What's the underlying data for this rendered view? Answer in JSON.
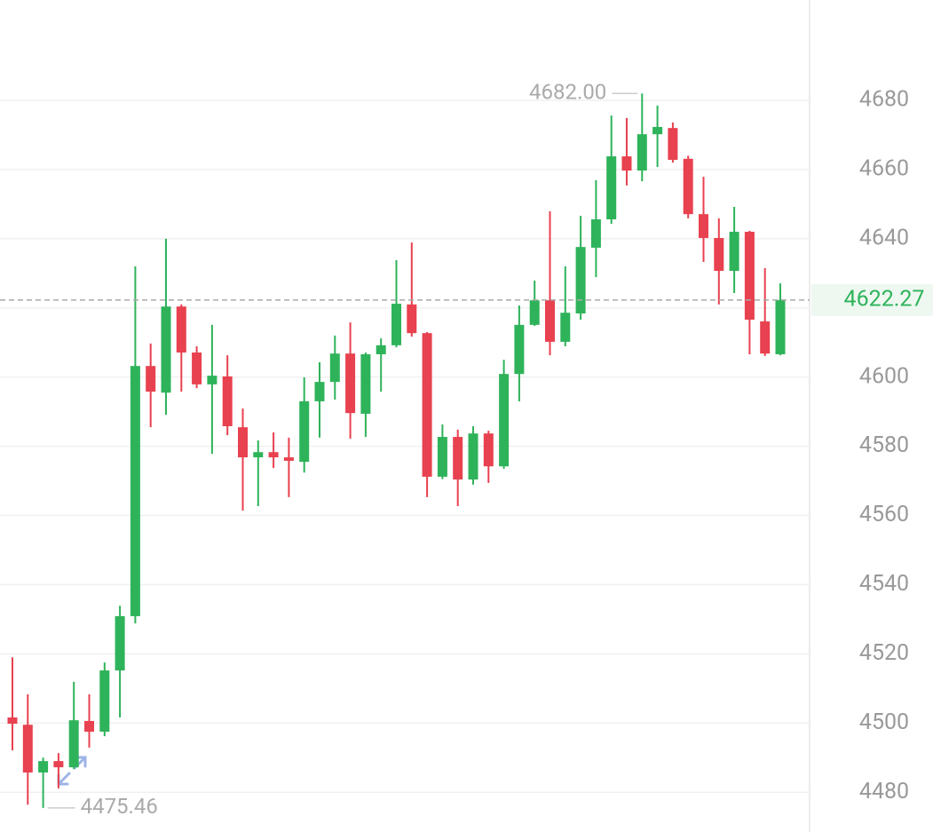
{
  "chart_data": {
    "type": "candlestick",
    "up_color": "#2eb35a",
    "down_color": "#e8414f",
    "open": [
      4501.6,
      4499.5,
      4485.7,
      4489.0,
      4487.2,
      4500.6,
      4497.5,
      4515.2,
      4530.9,
      4603.2,
      4595.5,
      4620.4,
      4607.1,
      4597.9,
      4600.2,
      4585.5,
      4576.8,
      4578.3,
      4576.8,
      4575.5,
      4593.0,
      4598.6,
      4606.8,
      4589.4,
      4606.6,
      4609.2,
      4621.0,
      4612.7,
      4571.2,
      4582.7,
      4570.4,
      4583.7,
      4574.2,
      4600.9,
      4615.1,
      4622.2,
      4610.2,
      4618.4,
      4637.4,
      4645.6,
      4663.8,
      4659.7,
      4670.2,
      4672.0,
      4663.1,
      4647.1,
      4640.2,
      4630.7,
      4642.0,
      4616.1,
      4606.6
    ],
    "high": [
      4519.0,
      4508.3,
      4490.0,
      4491.3,
      4511.9,
      4508.3,
      4517.5,
      4533.9,
      4632.0,
      4609.7,
      4640.0,
      4621.0,
      4608.9,
      4615.1,
      4606.3,
      4590.9,
      4581.7,
      4584.0,
      4582.5,
      4599.9,
      4604.3,
      4612.0,
      4615.8,
      4607.1,
      4611.2,
      4633.8,
      4638.9,
      4613.0,
      4586.3,
      4584.8,
      4585.8,
      4584.5,
      4605.0,
      4620.7,
      4627.9,
      4647.9,
      4632.0,
      4646.6,
      4656.9,
      4675.6,
      4674.9,
      4682.0,
      4678.5,
      4673.6,
      4664.0,
      4657.9,
      4645.9,
      4649.2,
      4642.3,
      4631.5,
      4627.1
    ],
    "low": [
      4492.1,
      4476.4,
      4475.46,
      4481.1,
      4486.7,
      4492.9,
      4496.2,
      4501.6,
      4528.8,
      4585.5,
      4589.1,
      4595.8,
      4596.8,
      4577.8,
      4583.2,
      4561.4,
      4562.7,
      4573.7,
      4565.3,
      4572.4,
      4582.5,
      4593.5,
      4582.2,
      4582.7,
      4595.8,
      4608.6,
      4611.7,
      4565.3,
      4570.5,
      4562.7,
      4568.9,
      4569.4,
      4573.5,
      4593.0,
      4614.8,
      4606.3,
      4608.9,
      4616.6,
      4628.9,
      4644.3,
      4655.4,
      4656.6,
      4660.7,
      4662.0,
      4645.9,
      4633.3,
      4621.0,
      4624.3,
      4606.6,
      4606.1,
      4606.3
    ],
    "close": [
      4499.8,
      4485.7,
      4489.0,
      4487.2,
      4500.8,
      4497.5,
      4515.2,
      4530.9,
      4603.2,
      4595.8,
      4620.4,
      4607.1,
      4597.9,
      4600.4,
      4585.8,
      4576.8,
      4578.3,
      4576.8,
      4575.8,
      4593.0,
      4598.6,
      4606.8,
      4589.6,
      4606.6,
      4609.2,
      4621.2,
      4612.7,
      4571.2,
      4582.7,
      4570.4,
      4583.7,
      4574.2,
      4600.9,
      4615.1,
      4622.2,
      4610.2,
      4618.6,
      4637.6,
      4645.6,
      4663.8,
      4659.7,
      4670.2,
      4672.3,
      4662.8,
      4647.1,
      4640.2,
      4630.7,
      4642.0,
      4616.6,
      4606.8,
      4622.27
    ],
    "ylim": [
      4468.5,
      4709
    ],
    "yticks": [
      4480,
      4500,
      4520,
      4540,
      4560,
      4580,
      4600,
      4620,
      4640,
      4660,
      4680
    ],
    "grid": true,
    "max_annotation": {
      "value": 4682,
      "label": "4682.00"
    },
    "min_annotation": 4475.46,
    "last_price": 4622.27
  }
}
